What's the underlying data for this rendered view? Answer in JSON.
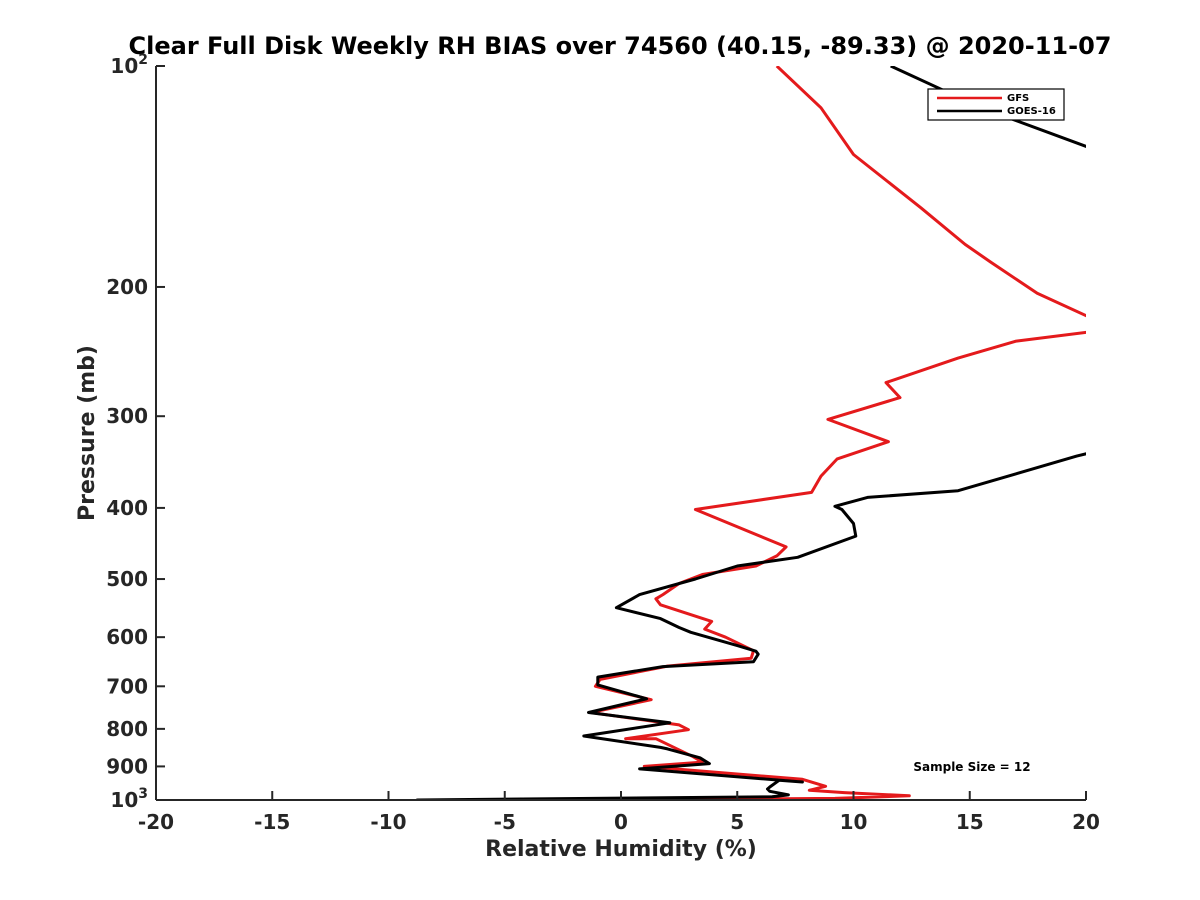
{
  "chart_data": {
    "type": "line",
    "title": "Clear Full Disk Weekly RH BIAS over 74560 (40.15, -89.33) @ 2020-11-07",
    "xlabel": "Relative Humidity (%)",
    "ylabel": "Pressure (mb)",
    "xlim": [
      -20,
      20
    ],
    "ylim": [
      100,
      1000
    ],
    "y_scale": "log",
    "y_reversed": true,
    "grid": false,
    "legend_position": "top-right",
    "x_ticks": [
      "-20",
      "-15",
      "-10",
      "-5",
      "0",
      "5",
      "10",
      "15",
      "20"
    ],
    "y_ticks": [
      {
        "value": 100,
        "base": "10",
        "exp": "2"
      },
      {
        "value": 200,
        "label": "200"
      },
      {
        "value": 300,
        "label": "300"
      },
      {
        "value": 400,
        "label": "400"
      },
      {
        "value": 500,
        "label": "500"
      },
      {
        "value": 600,
        "label": "600"
      },
      {
        "value": 700,
        "label": "700"
      },
      {
        "value": 800,
        "label": "800"
      },
      {
        "value": 900,
        "label": "900"
      },
      {
        "value": 1000,
        "base": "10",
        "exp": "3"
      }
    ],
    "annotation": "Sample Size = 12",
    "series": [
      {
        "name": "GFS",
        "color": "#e41a1c",
        "points": [
          [
            6.7,
            100
          ],
          [
            8.6,
            114
          ],
          [
            10.0,
            132
          ],
          [
            12.9,
            156
          ],
          [
            14.8,
            175
          ],
          [
            15.9,
            185
          ],
          [
            17.9,
            204
          ],
          [
            20.3,
            221
          ],
          [
            20.3,
            230
          ],
          [
            17.0,
            237
          ],
          [
            14.5,
            250
          ],
          [
            11.4,
            270
          ],
          [
            12.0,
            283
          ],
          [
            8.9,
            303
          ],
          [
            11.5,
            325
          ],
          [
            9.3,
            343
          ],
          [
            8.6,
            362
          ],
          [
            8.2,
            381
          ],
          [
            3.2,
            402
          ],
          [
            7.1,
            452
          ],
          [
            6.7,
            465
          ],
          [
            5.8,
            480
          ],
          [
            3.5,
            493
          ],
          [
            2.5,
            507
          ],
          [
            1.8,
            525
          ],
          [
            1.5,
            532
          ],
          [
            1.7,
            542
          ],
          [
            3.9,
            571
          ],
          [
            3.6,
            585
          ],
          [
            4.5,
            600
          ],
          [
            5.7,
            626
          ],
          [
            5.6,
            641
          ],
          [
            2.0,
            657
          ],
          [
            -0.9,
            685
          ],
          [
            -1.1,
            700
          ],
          [
            1.3,
            730
          ],
          [
            -1.3,
            760
          ],
          [
            2.5,
            790
          ],
          [
            2.9,
            802
          ],
          [
            0.2,
            825
          ],
          [
            1.5,
            825
          ],
          [
            3.1,
            873
          ],
          [
            3.5,
            888
          ],
          [
            1.0,
            900
          ],
          [
            7.8,
            937
          ],
          [
            8.8,
            958
          ],
          [
            8.1,
            970
          ],
          [
            9.6,
            977
          ],
          [
            12.4,
            987
          ],
          [
            9.2,
            995
          ],
          [
            -1.5,
            1000
          ]
        ]
      },
      {
        "name": "GOES-16",
        "color": "#000000",
        "points": [
          [
            11.6,
            100
          ],
          [
            15.5,
            114
          ],
          [
            20.1,
            129
          ],
          [
            22.0,
            145
          ],
          [
            20.1,
            337
          ],
          [
            19.6,
            340
          ],
          [
            14.5,
            379
          ],
          [
            10.6,
            387
          ],
          [
            9.2,
            398
          ],
          [
            9.5,
            402
          ],
          [
            10.0,
            420
          ],
          [
            10.1,
            437
          ],
          [
            7.6,
            467
          ],
          [
            5.0,
            480
          ],
          [
            3.2,
            500
          ],
          [
            0.8,
            525
          ],
          [
            -0.2,
            547
          ],
          [
            1.7,
            566
          ],
          [
            2.5,
            582
          ],
          [
            3.0,
            591
          ],
          [
            5.0,
            616
          ],
          [
            5.8,
            627
          ],
          [
            5.9,
            633
          ],
          [
            5.7,
            648
          ],
          [
            1.8,
            658
          ],
          [
            -1.0,
            680
          ],
          [
            -1.0,
            697
          ],
          [
            1.1,
            728
          ],
          [
            -1.4,
            760
          ],
          [
            2.1,
            785
          ],
          [
            -1.6,
            818
          ],
          [
            1.7,
            848
          ],
          [
            2.0,
            852
          ],
          [
            3.4,
            876
          ],
          [
            3.8,
            892
          ],
          [
            0.8,
            907
          ],
          [
            7.8,
            945
          ],
          [
            6.8,
            940
          ],
          [
            6.4,
            960
          ],
          [
            6.3,
            966
          ],
          [
            6.4,
            973
          ],
          [
            7.2,
            984
          ],
          [
            6.5,
            990
          ],
          [
            -8.8,
            1000
          ]
        ]
      }
    ]
  }
}
